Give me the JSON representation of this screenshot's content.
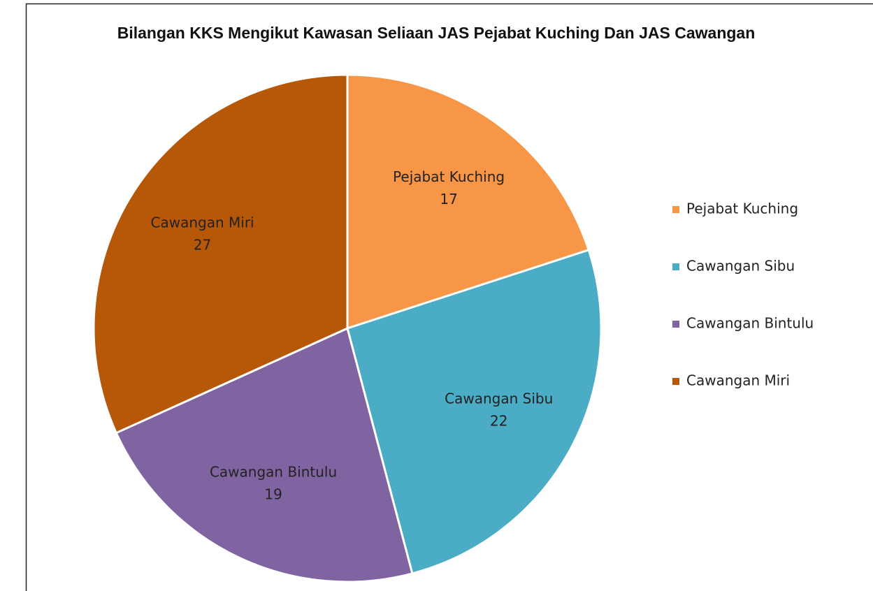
{
  "chart_data": {
    "type": "pie",
    "title": "Bilangan KKS Mengikut Kawasan Seliaan JAS Pejabat Kuching Dan JAS Cawangan",
    "categories": [
      "Pejabat Kuching",
      "Cawangan Sibu",
      "Cawangan Bintulu",
      "Cawangan Miri"
    ],
    "values": [
      17,
      22,
      19,
      27
    ],
    "colors": [
      "#f79646",
      "#4bacc6",
      "#8064a2",
      "#b75708"
    ],
    "legend": "right"
  }
}
